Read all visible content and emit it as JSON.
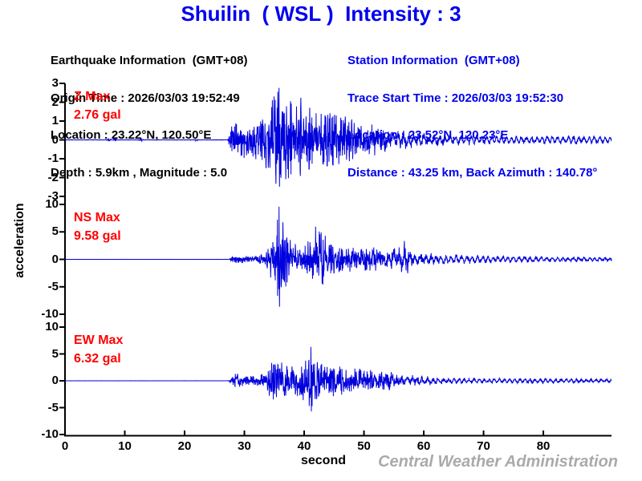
{
  "title": "Shuilin  ( WSL )  Intensity : 3",
  "earthquake_info": {
    "heading": "Earthquake Information  (GMT+08)",
    "lines": [
      "Origin Time : 2026/03/03 19:52:49",
      "Location : 23.22°N, 120.50°E",
      "Depth : 5.9km , Magnitude : 5.0"
    ]
  },
  "station_info": {
    "heading": "Station Information  (GMT+08)",
    "lines": [
      "Trace Start Time : 2026/03/03 19:52:30",
      "Location : 23.52°N, 120.23°E",
      "Distance : 43.25 km, Back Azimuth : 140.78°"
    ]
  },
  "watermark": "Central Weather Administration",
  "colors": {
    "title_blue": "#0000EE",
    "station_blue": "#0000EE",
    "trace_blue": "#0000DD",
    "max_label_red": "#FF0000",
    "watermark_gray": "#AAAAAA",
    "axis_black": "#000000"
  },
  "chart_data": {
    "type": "line",
    "xlabel": "second",
    "ylabel": "acceleration",
    "xlim": [
      0,
      91.4
    ],
    "x_ticks": [
      0,
      10,
      20,
      30,
      40,
      50,
      60,
      70,
      80
    ],
    "grid": false,
    "series": [
      {
        "name": "Z",
        "max_label": "Z Max",
        "max_value_label": "2.76 gal",
        "max_gal": 2.76,
        "peak_time_s": 35.8,
        "onset_time_s": 27.5,
        "ylim": [
          -3,
          3
        ],
        "y_ticks": [
          3,
          2,
          1,
          0,
          -1,
          -2,
          -3
        ],
        "blips": [
          [
            7.4,
            0.1
          ],
          [
            8.4,
            0.08
          ],
          [
            12.7,
            0.1
          ],
          [
            22.0,
            0.05
          ]
        ],
        "envelope_gal": [
          [
            0,
            0.01
          ],
          [
            27.2,
            0.01
          ],
          [
            27.7,
            0.7
          ],
          [
            28.5,
            1.05
          ],
          [
            31,
            1.0
          ],
          [
            33,
            1.3
          ],
          [
            34,
            1.9
          ],
          [
            35,
            2.5
          ],
          [
            35.8,
            2.76
          ],
          [
            36.5,
            2.2
          ],
          [
            37.5,
            2.6
          ],
          [
            38.5,
            2.1
          ],
          [
            39.5,
            2.4
          ],
          [
            41,
            1.9
          ],
          [
            43,
            1.6
          ],
          [
            45,
            1.75
          ],
          [
            47,
            1.3
          ],
          [
            49,
            1.05
          ],
          [
            51,
            0.9
          ],
          [
            53,
            0.75
          ],
          [
            56,
            0.55
          ],
          [
            59,
            0.42
          ],
          [
            63,
            0.33
          ],
          [
            68,
            0.3
          ],
          [
            74,
            0.26
          ],
          [
            80,
            0.24
          ],
          [
            86,
            0.26
          ],
          [
            91.4,
            0.22
          ]
        ]
      },
      {
        "name": "NS",
        "max_label": "NS Max",
        "max_value_label": "9.58 gal",
        "max_gal": 9.58,
        "peak_time_s": 35.8,
        "onset_time_s": 27.6,
        "ylim": [
          -10,
          10
        ],
        "y_ticks": [
          10,
          5,
          0,
          -5,
          -10
        ],
        "blips": [],
        "envelope_gal": [
          [
            0,
            0.01
          ],
          [
            27.4,
            0.01
          ],
          [
            27.9,
            0.55
          ],
          [
            28.6,
            0.85
          ],
          [
            30,
            0.7
          ],
          [
            32,
            0.8
          ],
          [
            33.5,
            1.5
          ],
          [
            34.8,
            4.5
          ],
          [
            35.8,
            9.58
          ],
          [
            36.6,
            6.5
          ],
          [
            37.5,
            4.0
          ],
          [
            38.5,
            3.2
          ],
          [
            40,
            3.0
          ],
          [
            41.9,
            6.3
          ],
          [
            43.5,
            4.8
          ],
          [
            45,
            2.8
          ],
          [
            47,
            2.4
          ],
          [
            49,
            2.2
          ],
          [
            51,
            2.6
          ],
          [
            53,
            2.2
          ],
          [
            55,
            2.0
          ],
          [
            56.8,
            3.6
          ],
          [
            58,
            1.6
          ],
          [
            60,
            1.3
          ],
          [
            63,
            1.05
          ],
          [
            67,
            0.9
          ],
          [
            72,
            0.75
          ],
          [
            78,
            0.6
          ],
          [
            84,
            0.55
          ],
          [
            91.4,
            0.45
          ]
        ]
      },
      {
        "name": "EW",
        "max_label": "EW Max",
        "max_value_label": "6.32 gal",
        "max_gal": 6.32,
        "peak_time_s": 41.1,
        "onset_time_s": 27.6,
        "ylim": [
          -10,
          10
        ],
        "y_ticks": [
          10,
          5,
          0,
          -5,
          -10
        ],
        "blips": [],
        "envelope_gal": [
          [
            0,
            0.01
          ],
          [
            27.4,
            0.01
          ],
          [
            27.9,
            1.2
          ],
          [
            28.7,
            1.6
          ],
          [
            30,
            0.9
          ],
          [
            32,
            1.0
          ],
          [
            33.5,
            1.6
          ],
          [
            34.6,
            3.6
          ],
          [
            35.4,
            6.0
          ],
          [
            36.3,
            3.4
          ],
          [
            37.5,
            3.0
          ],
          [
            39,
            3.6
          ],
          [
            40.3,
            5.2
          ],
          [
            41.1,
            6.32
          ],
          [
            42.2,
            4.4
          ],
          [
            43.5,
            3.2
          ],
          [
            45,
            3.4
          ],
          [
            46.5,
            2.6
          ],
          [
            48,
            2.4
          ],
          [
            50,
            2.2
          ],
          [
            51.5,
            2.5
          ],
          [
            53,
            2.0
          ],
          [
            55,
            1.7
          ],
          [
            57,
            1.3
          ],
          [
            59,
            1.0
          ],
          [
            62,
            0.8
          ],
          [
            66,
            0.65
          ],
          [
            71,
            0.55
          ],
          [
            78,
            0.5
          ],
          [
            85,
            0.45
          ],
          [
            91.4,
            0.4
          ]
        ]
      }
    ]
  }
}
